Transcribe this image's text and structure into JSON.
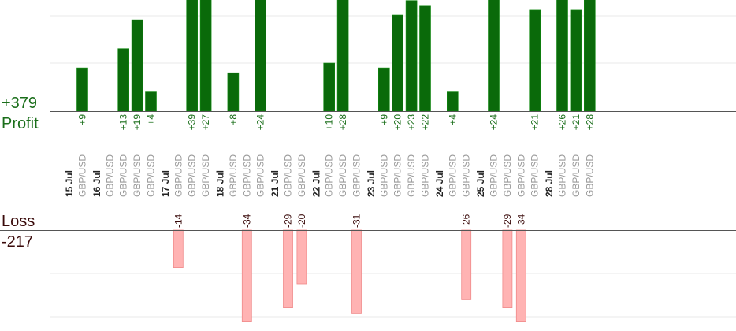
{
  "summary": {
    "profit_total": "+379",
    "profit_label": "Profit",
    "loss_label": "Loss",
    "loss_total": "-217"
  },
  "colors": {
    "profit_bar": "#0a6a0a",
    "profit_bar_edge": "#0f8a0f",
    "profit_text": "#1a6e1a",
    "loss_bar": "#ffb3b3",
    "loss_bar_edge": "#f08a8a",
    "loss_text": "#3a0a0a",
    "axis": "#555555",
    "grid": "#e8e8e8"
  },
  "chart_data": {
    "type": "bar",
    "profit_ylim": [
      0,
      39
    ],
    "loss_ylim": [
      0,
      34
    ],
    "days": [
      {
        "date": "15 Jul",
        "trades": [
          {
            "pair": "GBP/USD",
            "profit": 9,
            "profit_label": "+9"
          }
        ]
      },
      {
        "date": "16 Jul",
        "trades": [
          {
            "pair": "GBP/USD"
          },
          {
            "pair": "GBP/USD",
            "profit": 13,
            "profit_label": "+13"
          },
          {
            "pair": "GBP/USD",
            "profit": 19,
            "profit_label": "+19"
          },
          {
            "pair": "GBP/USD",
            "profit": 4,
            "profit_label": "+4"
          }
        ]
      },
      {
        "date": "17 Jul",
        "trades": [
          {
            "pair": "GBP/USD",
            "loss": -14,
            "loss_label": "-14"
          },
          {
            "pair": "GBP/USD",
            "profit": 39,
            "profit_label": "+39"
          },
          {
            "pair": "GBP/USD",
            "profit": 27,
            "profit_label": "+27"
          }
        ]
      },
      {
        "date": "18 Jul",
        "trades": [
          {
            "pair": "GBP/USD",
            "profit": 8,
            "profit_label": "+8"
          },
          {
            "pair": "GBP/USD",
            "loss": -34,
            "loss_label": "-34"
          },
          {
            "pair": "GBP/USD",
            "profit": 24,
            "profit_label": "+24"
          }
        ]
      },
      {
        "date": "21 Jul",
        "trades": [
          {
            "pair": "GBP/USD",
            "loss": -29,
            "loss_label": "-29"
          },
          {
            "pair": "GBP/USD",
            "loss": -20,
            "loss_label": "-20"
          }
        ]
      },
      {
        "date": "22 Jul",
        "trades": [
          {
            "pair": "GBP/USD",
            "profit": 10,
            "profit_label": "+10"
          },
          {
            "pair": "GBP/USD",
            "profit": 28,
            "profit_label": "+28"
          },
          {
            "pair": "GBP/USD",
            "loss": -31,
            "loss_label": "-31"
          }
        ]
      },
      {
        "date": "23 Jul",
        "trades": [
          {
            "pair": "GBP/USD",
            "profit": 9,
            "profit_label": "+9"
          },
          {
            "pair": "GBP/USD",
            "profit": 20,
            "profit_label": "+20"
          },
          {
            "pair": "GBP/USD",
            "profit": 23,
            "profit_label": "+23"
          },
          {
            "pair": "GBP/USD",
            "profit": 22,
            "profit_label": "+22"
          }
        ]
      },
      {
        "date": "24 Jul",
        "trades": [
          {
            "pair": "GBP/USD",
            "profit": 4,
            "profit_label": "+4"
          },
          {
            "pair": "GBP/USD",
            "loss": -26,
            "loss_label": "-26"
          }
        ]
      },
      {
        "date": "25 Jul",
        "trades": [
          {
            "pair": "GBP/USD",
            "profit": 24,
            "profit_label": "+24"
          },
          {
            "pair": "GBP/USD",
            "loss": -29,
            "loss_label": "-29"
          },
          {
            "pair": "GBP/USD",
            "loss": -34,
            "loss_label": "-34"
          },
          {
            "pair": "GBP/USD",
            "profit": 21,
            "profit_label": "+21"
          }
        ]
      },
      {
        "date": "28 Jul",
        "trades": [
          {
            "pair": "GBP/USD",
            "profit": 26,
            "profit_label": "+26"
          },
          {
            "pair": "GBP/USD",
            "profit": 21,
            "profit_label": "+21"
          },
          {
            "pair": "GBP/USD",
            "profit": 28,
            "profit_label": "+28"
          }
        ]
      }
    ]
  }
}
